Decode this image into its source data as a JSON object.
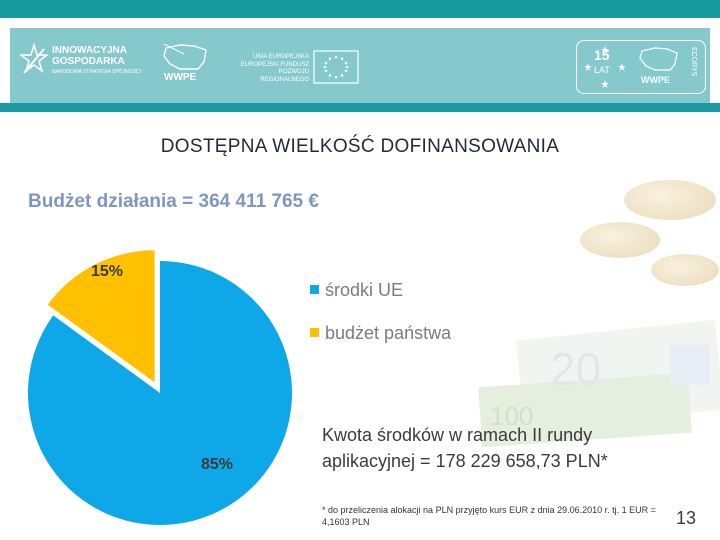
{
  "header": {
    "logo_left": {
      "line1": "INNOWACYJNA",
      "line2": "GOSPODARKA",
      "line3": "NARODOWA STRATEGIA SPÓJNOŚCI"
    },
    "logo_wwpe": "WWPE",
    "logo_ue": {
      "line1": "UNIA EUROPEJSKA",
      "line2": "EUROPEJSKI FUNDUSZ",
      "line3": "ROZWOJU REGIONALNEGO"
    },
    "logo_right": {
      "badge_number": "15",
      "badge_word": "LAT",
      "side_text": "ECORYS",
      "wwpe": "WWPE"
    }
  },
  "slide": {
    "title": "DOSTĘPNA WIELKOŚĆ DOFINANSOWANIA",
    "budget": "Budżet działania = 364 411 765 €",
    "kwota_line1": "Kwota środków w ramach II rundy",
    "kwota_line2": "aplikacyjnej = 178 229 658,73 PLN*",
    "footnote": "* do przeliczenia alokacji na PLN przyjęto kurs EUR z dnia 29.06.2010 r. tj. 1 EUR = 4,1603 PLN",
    "page_number": "13"
  },
  "chart_data": {
    "type": "pie",
    "categories": [
      "środki UE",
      "budżet państwa"
    ],
    "values": [
      85,
      15
    ],
    "labels": [
      "85%",
      "15%"
    ],
    "colors": [
      "#0ea8e8",
      "#ffc000"
    ],
    "legend_position": "right"
  }
}
